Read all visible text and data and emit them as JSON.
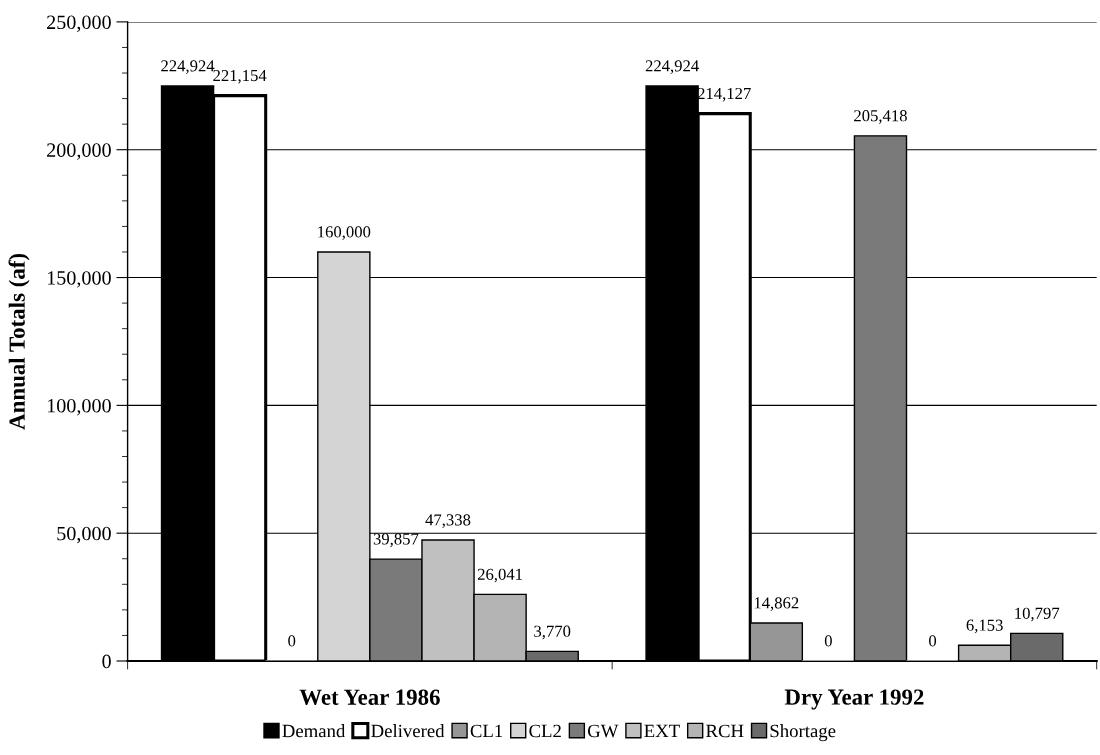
{
  "chart_data": {
    "type": "bar",
    "ylabel": "Annual Totals (af)",
    "categories": [
      "Wet Year 1986",
      "Dry Year 1992"
    ],
    "series": [
      {
        "name": "Demand",
        "color": "#000000",
        "values": [
          224924,
          224924
        ],
        "value_labels": [
          "224,924",
          "224,924"
        ]
      },
      {
        "name": "Delivered",
        "color": "#ffffff",
        "values": [
          221154,
          214127
        ],
        "value_labels": [
          "221,154",
          "214,127"
        ]
      },
      {
        "name": "CL1",
        "color": "#969696",
        "values": [
          0,
          14862
        ],
        "value_labels": [
          "0",
          "14,862"
        ]
      },
      {
        "name": "CL2",
        "color": "#d4d4d4",
        "values": [
          160000,
          0
        ],
        "value_labels": [
          "160,000",
          "0"
        ]
      },
      {
        "name": "GW",
        "color": "#7a7a7a",
        "values": [
          39857,
          205418
        ],
        "value_labels": [
          "39,857",
          "205,418"
        ]
      },
      {
        "name": "EXT",
        "color": "#c0c0c0",
        "values": [
          47338,
          0
        ],
        "value_labels": [
          "47,338",
          "0"
        ]
      },
      {
        "name": "RCH",
        "color": "#b4b4b4",
        "values": [
          26041,
          6153
        ],
        "value_labels": [
          "26,041",
          "6,153"
        ]
      },
      {
        "name": "Shortage",
        "color": "#6a6a6a",
        "values": [
          3770,
          10797
        ],
        "value_labels": [
          "3,770",
          "10,797"
        ]
      }
    ],
    "ylim": [
      0,
      250000
    ],
    "yticks": [
      {
        "value": 0,
        "label": "0"
      },
      {
        "value": 50000,
        "label": "50,000"
      },
      {
        "value": 100000,
        "label": "100,000"
      },
      {
        "value": 150000,
        "label": "150,000"
      },
      {
        "value": 200000,
        "label": "200,000"
      },
      {
        "value": 250000,
        "label": "250,000"
      }
    ],
    "grid": "y",
    "legend": "bottom"
  }
}
